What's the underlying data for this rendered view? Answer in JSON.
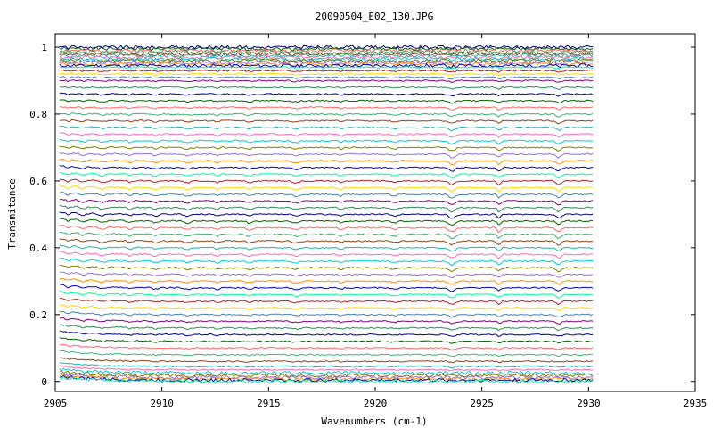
{
  "chart_data": {
    "type": "line",
    "title": "20090504_E02_130.JPG",
    "xlabel": "Wavenumbers (cm-1)",
    "ylabel": "Transmitance",
    "xlim": [
      2905,
      2935
    ],
    "ylim": [
      -0.03,
      1.04
    ],
    "x_ticks": [
      2905,
      2910,
      2915,
      2920,
      2925,
      2930,
      2935
    ],
    "y_ticks": [
      0,
      0.2,
      0.4,
      0.6,
      0.8,
      1
    ],
    "y_tick_labels": [
      "0",
      "0.2",
      "0.4",
      "0.6",
      "0.8",
      "1"
    ],
    "x_tick_labels": [
      "2905",
      "2910",
      "2915",
      "2920",
      "2925",
      "2930",
      "2935"
    ],
    "grid": false,
    "legend": "none",
    "x_data_range": [
      2905.2,
      2930.2
    ],
    "absorption_lines_x": [
      2905.6,
      2906.3,
      2907.2,
      2908.5,
      2909.7,
      2911.2,
      2912.6,
      2914.1,
      2916.3,
      2918.4,
      2920.9,
      2923.6,
      2925.8,
      2928.6
    ],
    "series_levels": [
      1.0,
      0.995,
      0.99,
      0.985,
      0.98,
      0.975,
      0.97,
      0.965,
      0.96,
      0.955,
      0.95,
      0.945,
      0.94,
      0.93,
      0.92,
      0.91,
      0.9,
      0.88,
      0.86,
      0.84,
      0.82,
      0.8,
      0.78,
      0.76,
      0.74,
      0.72,
      0.7,
      0.68,
      0.66,
      0.64,
      0.62,
      0.6,
      0.58,
      0.56,
      0.54,
      0.52,
      0.5,
      0.48,
      0.46,
      0.44,
      0.42,
      0.4,
      0.38,
      0.36,
      0.34,
      0.32,
      0.3,
      0.28,
      0.26,
      0.24,
      0.22,
      0.2,
      0.18,
      0.16,
      0.14,
      0.12,
      0.1,
      0.08,
      0.06,
      0.045,
      0.035,
      0.025,
      0.018,
      0.012,
      0.008,
      0.004,
      0.0
    ],
    "series_colors": [
      "#000080",
      "#006400",
      "#ff6666",
      "#3cb371",
      "#8b4513",
      "#20b2aa",
      "#ff69b4",
      "#00ced1",
      "#808000",
      "#9370db",
      "#ff8c00",
      "#0000cd",
      "#00fa9a",
      "#b22222",
      "#ffd700",
      "#4682b4",
      "#800080",
      "#2e8b57"
    ]
  }
}
